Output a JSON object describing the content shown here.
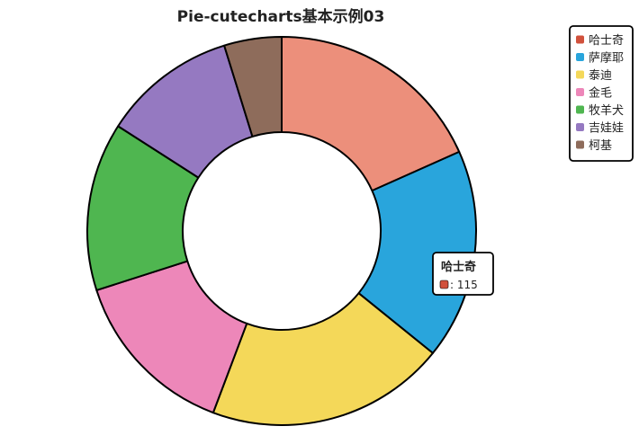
{
  "chart_data": {
    "type": "pie",
    "title": "Pie-cutecharts基本示例03",
    "categories": [
      "哈士奇",
      "萨摩耶",
      "泰迪",
      "金毛",
      "牧羊犬",
      "吉娃娃",
      "柯基"
    ],
    "values": [
      115,
      110,
      125,
      90,
      88,
      70,
      30
    ],
    "colors": [
      "#ec8f7b",
      "#29a5dc",
      "#f4d859",
      "#ed87b9",
      "#4fb650",
      "#9579c1",
      "#8e6c5b"
    ],
    "legend_colors": [
      "#d1513c",
      "#29a5dc",
      "#f4d859",
      "#ed87b9",
      "#4fb650",
      "#9579c1",
      "#8e6c5b"
    ],
    "donut": true,
    "legend_position": "top-right",
    "tooltip": {
      "category": "哈士奇",
      "label": "哈士奇",
      "value_text": ": 115",
      "color": "#d1513c"
    }
  }
}
